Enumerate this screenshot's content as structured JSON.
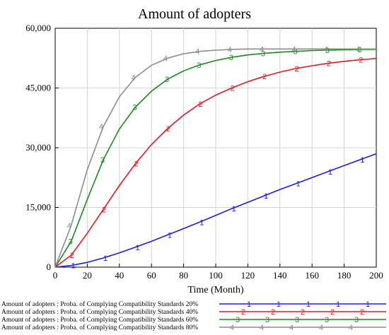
{
  "chart_data": {
    "type": "line",
    "title": "Amount of adopters",
    "xlabel": "Time (Month)",
    "ylabel": "",
    "xlim": [
      0,
      200
    ],
    "ylim": [
      0,
      60000
    ],
    "x_ticks": [
      "0",
      "20",
      "40",
      "60",
      "80",
      "100",
      "120",
      "140",
      "160",
      "180",
      "200"
    ],
    "y_ticks": [
      "0",
      "15,000",
      "30,000",
      "45,000",
      "60,000"
    ],
    "x": [
      0,
      10,
      20,
      30,
      40,
      50,
      60,
      70,
      80,
      90,
      100,
      110,
      120,
      130,
      140,
      150,
      160,
      170,
      180,
      190,
      200
    ],
    "series": [
      {
        "name": "Amount of adopters : Proba. of Complying Compatibility Standards 20%",
        "marker": "1",
        "color": "#1a1aff",
        "values": [
          0,
          400,
          1200,
          2300,
          3600,
          5000,
          6500,
          8100,
          9700,
          11300,
          13000,
          14700,
          16300,
          17900,
          19500,
          21000,
          22500,
          24000,
          25500,
          27000,
          28500
        ]
      },
      {
        "name": "Amount of adopters : Proba. of Complying Compatibility Standards 40%",
        "marker": "2",
        "color": "#e8161e",
        "values": [
          0,
          3000,
          8500,
          14500,
          20500,
          26000,
          30800,
          34800,
          38200,
          41000,
          43200,
          45000,
          46600,
          47900,
          49000,
          49900,
          50600,
          51200,
          51700,
          52100,
          52400
        ]
      },
      {
        "name": "Amount of adopters : Proba. of Complying Compatibility Standards 60%",
        "marker": "3",
        "color": "#168b1a",
        "values": [
          0,
          6500,
          17000,
          27000,
          34700,
          40200,
          44200,
          47200,
          49300,
          50800,
          51900,
          52700,
          53300,
          53700,
          54000,
          54200,
          54400,
          54500,
          54600,
          54700,
          54700
        ]
      },
      {
        "name": "Amount of adopters : Proba. of Complying Compatibility Standards 80%",
        "marker": "4",
        "color": "#8c8c8c",
        "values": [
          0,
          10500,
          24500,
          35300,
          42800,
          47700,
          50700,
          52500,
          53600,
          54200,
          54500,
          54700,
          54800,
          54800,
          54800,
          54800,
          54800,
          54800,
          54800,
          54800,
          54800
        ]
      }
    ]
  }
}
